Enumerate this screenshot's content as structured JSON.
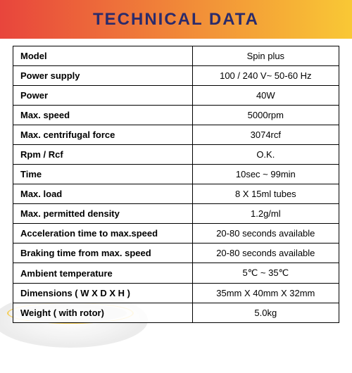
{
  "title": "TECHNICAL DATA",
  "header": {
    "gradient_start": "#e8453c",
    "gradient_end": "#f9c835",
    "text_color": "#2b2b6b",
    "fontsize": 24
  },
  "table": {
    "border_color": "#000000",
    "label_fontsize": 13,
    "value_fontsize": 13,
    "rows": [
      {
        "label": "Model",
        "value": "Spin plus"
      },
      {
        "label": "Power supply",
        "value": "100 / 240 V~ 50-60 Hz"
      },
      {
        "label": "Power",
        "value": "40W"
      },
      {
        "label": "Max. speed",
        "value": "5000rpm"
      },
      {
        "label": "Max. centrifugal force",
        "value": "3074rcf"
      },
      {
        "label": "Rpm / Rcf",
        "value": "O.K."
      },
      {
        "label": "Time",
        "value": "10sec ~ 99min"
      },
      {
        "label": "Max. load",
        "value": "8 X 15ml tubes"
      },
      {
        "label": "Max. permitted density",
        "value": "1.2g/ml"
      },
      {
        "label": "Acceleration time to max.speed",
        "value": "20-80 seconds available"
      },
      {
        "label": "Braking time from max. speed",
        "value": "20-80 seconds available"
      },
      {
        "label": "Ambient temperature",
        "value": "5℃ ~ 35℃"
      },
      {
        "label": "Dimensions ( W X D X H )",
        "value": "35mm X 40mm X 32mm"
      },
      {
        "label": "Weight ( with rotor)",
        "value": "5.0kg"
      }
    ]
  }
}
